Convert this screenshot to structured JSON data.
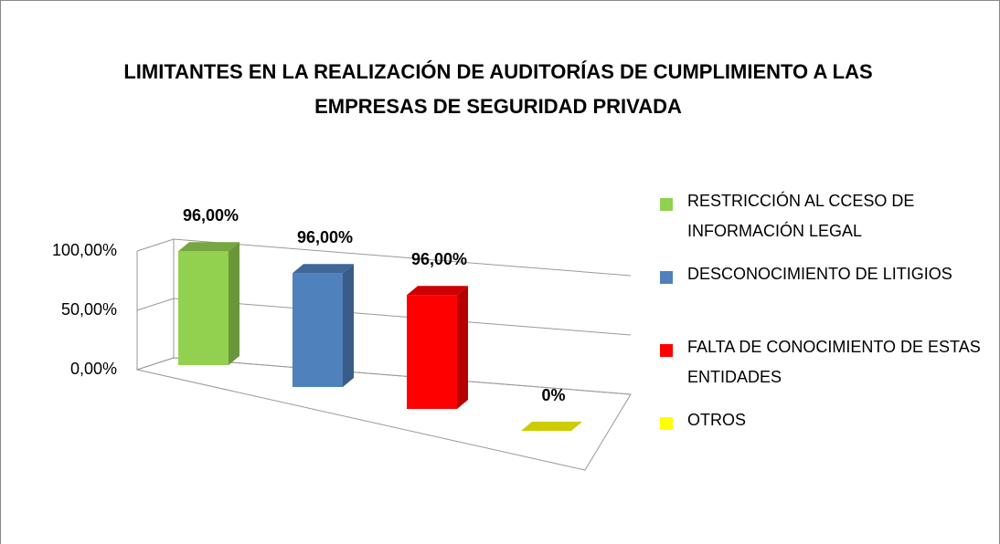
{
  "chart_data": {
    "type": "bar",
    "title": "LIMITANTES EN LA REALIZACIÓN DE AUDITORÍAS DE CUMPLIMIENTO A LAS EMPRESAS DE SEGURIDAD PRIVADA",
    "series": [
      {
        "name": "RESTRICCIÓN AL CCESO DE INFORMACIÓN LEGAL",
        "color": "#92d050",
        "values": [
          96
        ],
        "value_labels": [
          "96,00%"
        ]
      },
      {
        "name": "DESCONOCIMIENTO DE LITIGIOS",
        "color": "#4f81bd",
        "values": [
          96
        ],
        "value_labels": [
          "96,00%"
        ]
      },
      {
        "name": "FALTA DE CONOCIMIENTO DE ESTAS ENTIDADES",
        "color": "#ff0000",
        "values": [
          96
        ],
        "value_labels": [
          "96,00%"
        ]
      },
      {
        "name": "OTROS",
        "color": "#ffff00",
        "values": [
          0
        ],
        "value_labels": [
          "0%"
        ]
      }
    ],
    "ylim": [
      0,
      100
    ],
    "yticks": [
      {
        "value": 0,
        "label": "0,00%"
      },
      {
        "value": 50,
        "label": "50,00%"
      },
      {
        "value": 100,
        "label": "100,00%"
      }
    ],
    "grid": true,
    "legend": "right"
  }
}
